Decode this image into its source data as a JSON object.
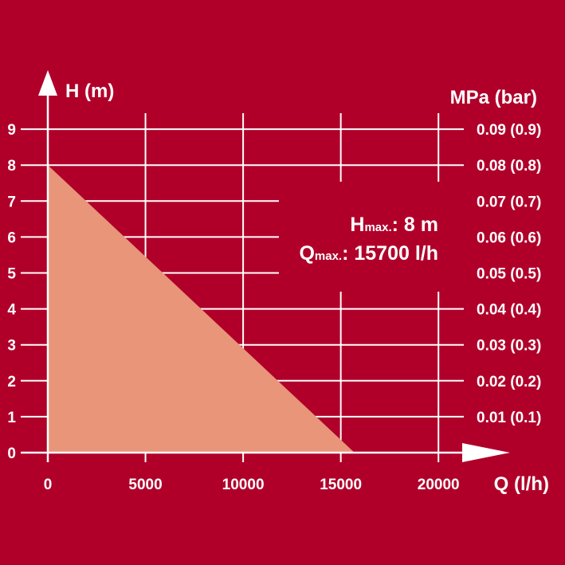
{
  "chart_data": {
    "type": "area",
    "ylabel": "H (m)",
    "y2label": "MPa (bar)",
    "xlabel": "Q (l/h)",
    "x_ticks": [
      0,
      5000,
      10000,
      15000,
      20000
    ],
    "x_tick_labels": [
      "0",
      "5000",
      "10000",
      "15000",
      "20000"
    ],
    "y_ticks": [
      0,
      1,
      2,
      3,
      4,
      5,
      6,
      7,
      8,
      9
    ],
    "y_tick_labels": [
      "0",
      "1",
      "2",
      "3",
      "4",
      "5",
      "6",
      "7",
      "8",
      "9"
    ],
    "y2_ticks": [
      1,
      2,
      3,
      4,
      5,
      6,
      7,
      8,
      9
    ],
    "y2_tick_labels": [
      "0.01 (0.1)",
      "0.02 (0.2)",
      "0.03 (0.3)",
      "0.04 (0.4)",
      "0.05 (0.5)",
      "0.06 (0.6)",
      "0.07 (0.7)",
      "0.08 (0.8)",
      "0.09 (0.9)"
    ],
    "xlim": [
      0,
      23500
    ],
    "ylim": [
      0,
      9
    ],
    "grid": true,
    "series": [
      {
        "x": [
          0,
          15700
        ],
        "y": [
          8,
          0
        ]
      }
    ],
    "annotations": [
      {
        "main": "H",
        "sub": "max.",
        "value": ": 8 m"
      },
      {
        "main": "Q",
        "sub": "max.",
        "value": ": 15700 l/h"
      }
    ]
  },
  "colors": {
    "background": "#b0002a",
    "fill": "#e8957a",
    "lines": "#ffffff"
  }
}
